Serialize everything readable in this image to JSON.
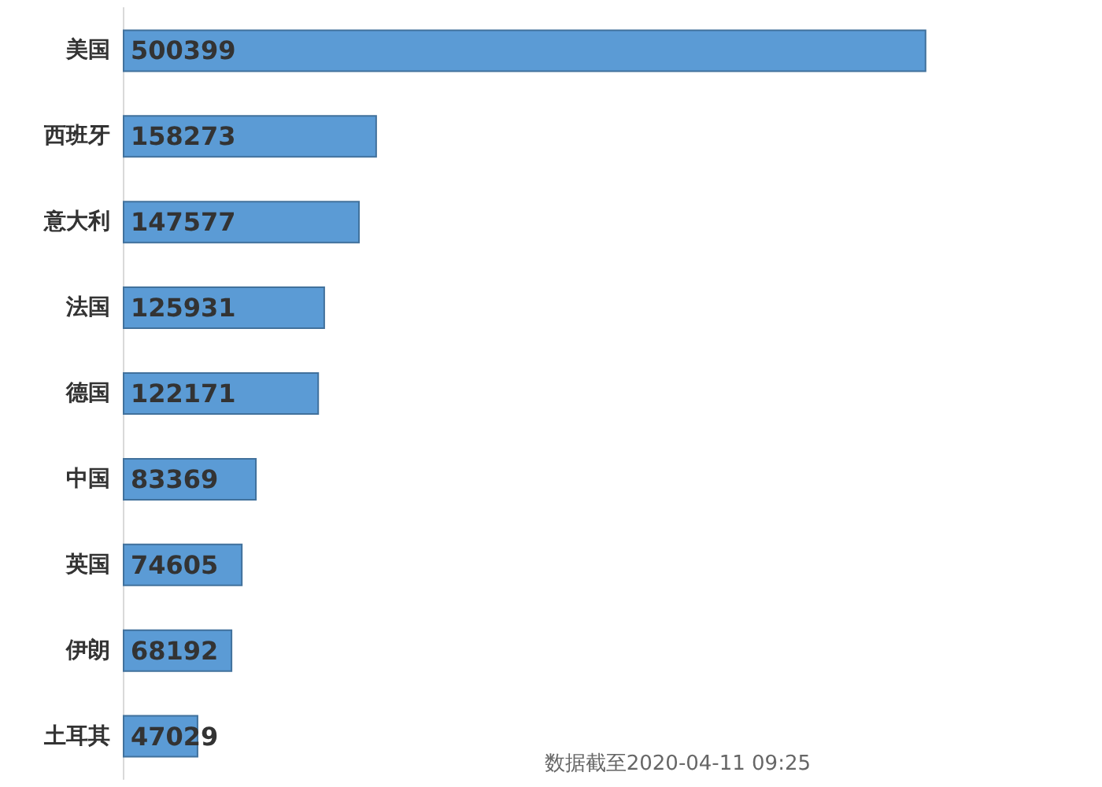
{
  "chart_data": {
    "type": "bar",
    "orientation": "horizontal",
    "categories": [
      "美国",
      "西班牙",
      "意大利",
      "法国",
      "德国",
      "中国",
      "英国",
      "伊朗",
      "土耳其"
    ],
    "values": [
      500399,
      158273,
      147577,
      125931,
      122171,
      83369,
      74605,
      68192,
      47029
    ],
    "color": "#5b9bd5",
    "data_labels": true,
    "tick_labels": "y",
    "annotations": [
      "数据截至2020-04-11 09:25"
    ]
  }
}
